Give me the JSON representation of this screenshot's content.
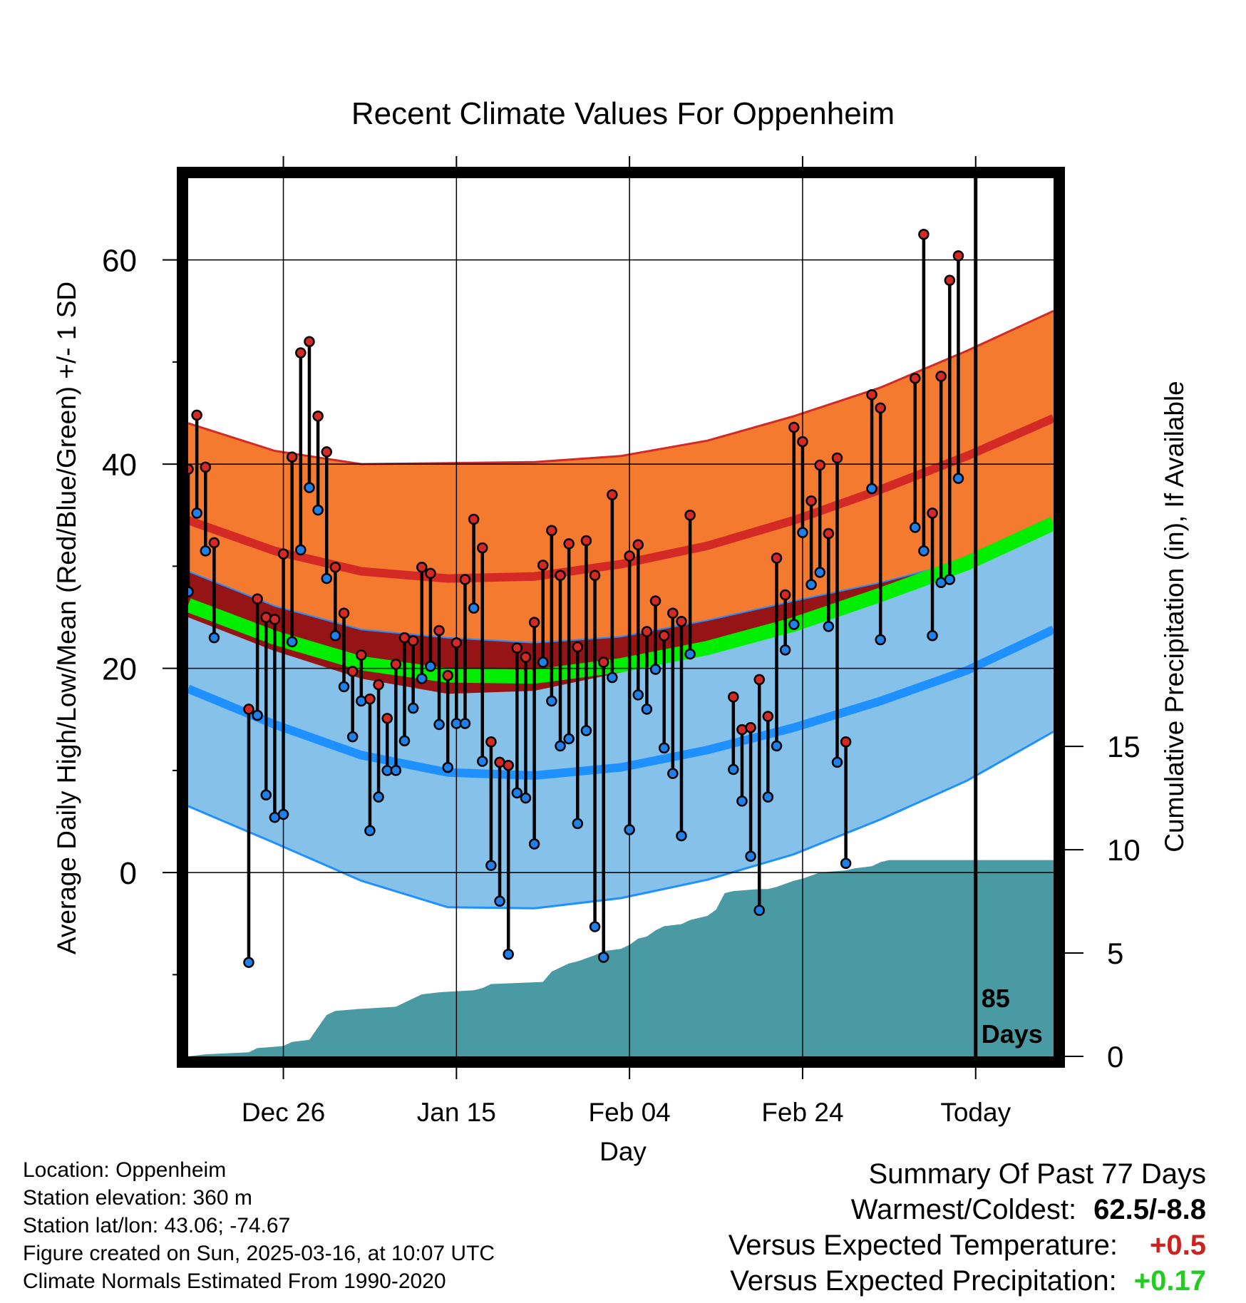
{
  "chart_data": {
    "type": "climate-range",
    "title": "Recent Climate Values For Oppenheim",
    "xlabel": "Day",
    "ylabel": "Average Daily High/Low/Mean (Red/Blue/Green) +/- 1 SD",
    "y2label": "Cumulative Precipitation (in), If Available",
    "x_ticks": [
      {
        "label": "Dec 26",
        "day": 11
      },
      {
        "label": "Jan 15",
        "day": 31
      },
      {
        "label": "Feb 04",
        "day": 51
      },
      {
        "label": "Feb 24",
        "day": 71
      },
      {
        "label": "Today",
        "day": 91
      }
    ],
    "today_day": 91,
    "x_range": [
      0,
      100
    ],
    "y_ticks": [
      0,
      20,
      40,
      60
    ],
    "ylim": [
      -18,
      68
    ],
    "y2_ticks": [
      0,
      5,
      10,
      15
    ],
    "y2lim": [
      0,
      42.5
    ],
    "days_label": "85\nDays",
    "normals": {
      "days": [
        0,
        10,
        20,
        30,
        40,
        50,
        60,
        70,
        80,
        90,
        100
      ],
      "high_mean": [
        34.5,
        31.5,
        29.5,
        28.8,
        29.0,
        30.2,
        32.0,
        34.5,
        37.5,
        40.8,
        44.5
      ],
      "high_sd": [
        9.5,
        9.8,
        10.5,
        11.3,
        11.2,
        10.6,
        10.3,
        10.2,
        10.0,
        10.3,
        10.5
      ],
      "low_mean": [
        18.0,
        14.5,
        11.5,
        9.8,
        9.5,
        10.3,
        12.0,
        14.2,
        16.8,
        19.8,
        23.8
      ],
      "low_sd": [
        11.5,
        11.6,
        12.3,
        13.2,
        13.0,
        12.8,
        12.7,
        12.4,
        11.6,
        10.8,
        10.0
      ],
      "mean_mean": [
        26.2,
        23.0,
        20.5,
        19.3,
        19.2,
        20.3,
        22.0,
        24.3,
        27.2,
        30.3,
        34.2
      ]
    },
    "observed": [
      {
        "day": 0,
        "high": 39.5,
        "low": 27.5
      },
      {
        "day": 1,
        "high": 44.8,
        "low": 35.2
      },
      {
        "day": 2,
        "high": 39.7,
        "low": 31.5
      },
      {
        "day": 3,
        "high": 32.3,
        "low": 23.0
      },
      {
        "day": 7,
        "high": 16.0,
        "low": -8.8
      },
      {
        "day": 8,
        "high": 26.8,
        "low": 15.4
      },
      {
        "day": 9,
        "high": 25.0,
        "low": 7.6
      },
      {
        "day": 10,
        "high": 24.8,
        "low": 5.4
      },
      {
        "day": 11,
        "high": 31.2,
        "low": 5.7
      },
      {
        "day": 12,
        "high": 40.7,
        "low": 22.6
      },
      {
        "day": 13,
        "high": 50.9,
        "low": 31.6
      },
      {
        "day": 14,
        "high": 52.0,
        "low": 37.7
      },
      {
        "day": 15,
        "high": 44.7,
        "low": 35.5
      },
      {
        "day": 16,
        "high": 41.2,
        "low": 28.8
      },
      {
        "day": 17,
        "high": 29.9,
        "low": 23.2
      },
      {
        "day": 18,
        "high": 25.4,
        "low": 18.2
      },
      {
        "day": 19,
        "high": 19.7,
        "low": 13.3
      },
      {
        "day": 20,
        "high": 21.3,
        "low": 16.8
      },
      {
        "day": 21,
        "high": 17.0,
        "low": 4.1
      },
      {
        "day": 22,
        "high": 18.4,
        "low": 7.4
      },
      {
        "day": 23,
        "high": 15.1,
        "low": 10.0
      },
      {
        "day": 24,
        "high": 20.4,
        "low": 10.0
      },
      {
        "day": 25,
        "high": 23.0,
        "low": 12.9
      },
      {
        "day": 26,
        "high": 22.7,
        "low": 16.1
      },
      {
        "day": 27,
        "high": 29.9,
        "low": 19.0
      },
      {
        "day": 28,
        "high": 29.3,
        "low": 20.2
      },
      {
        "day": 29,
        "high": 23.7,
        "low": 14.5
      },
      {
        "day": 30,
        "high": 19.3,
        "low": 10.3
      },
      {
        "day": 31,
        "high": 22.5,
        "low": 14.6
      },
      {
        "day": 32,
        "high": 28.7,
        "low": 14.6
      },
      {
        "day": 33,
        "high": 34.6,
        "low": 25.9
      },
      {
        "day": 34,
        "high": 31.8,
        "low": 10.9
      },
      {
        "day": 35,
        "high": 12.8,
        "low": 0.7
      },
      {
        "day": 36,
        "high": 10.8,
        "low": -2.8
      },
      {
        "day": 37,
        "high": 10.5,
        "low": -8.0
      },
      {
        "day": 38,
        "high": 22.0,
        "low": 7.8
      },
      {
        "day": 39,
        "high": 21.1,
        "low": 7.3
      },
      {
        "day": 40,
        "high": 24.5,
        "low": 2.8
      },
      {
        "day": 41,
        "high": 30.1,
        "low": 20.6
      },
      {
        "day": 42,
        "high": 33.5,
        "low": 16.8
      },
      {
        "day": 43,
        "high": 29.1,
        "low": 12.4
      },
      {
        "day": 44,
        "high": 32.2,
        "low": 13.1
      },
      {
        "day": 45,
        "high": 22.1,
        "low": 4.8
      },
      {
        "day": 46,
        "high": 32.5,
        "low": 13.9
      },
      {
        "day": 47,
        "high": 29.1,
        "low": -5.3
      },
      {
        "day": 48,
        "high": 20.6,
        "low": -8.3
      },
      {
        "day": 49,
        "high": 37.0,
        "low": 19.1
      },
      {
        "day": 51,
        "high": 31.0,
        "low": 4.2
      },
      {
        "day": 52,
        "high": 32.1,
        "low": 17.4
      },
      {
        "day": 53,
        "high": 23.6,
        "low": 16.0
      },
      {
        "day": 54,
        "high": 26.6,
        "low": 19.9
      },
      {
        "day": 55,
        "high": 23.2,
        "low": 12.2
      },
      {
        "day": 56,
        "high": 25.4,
        "low": 9.7
      },
      {
        "day": 57,
        "high": 24.6,
        "low": 3.6
      },
      {
        "day": 58,
        "high": 35.0,
        "low": 21.4
      },
      {
        "day": 63,
        "high": 17.2,
        "low": 10.1
      },
      {
        "day": 64,
        "high": 14.0,
        "low": 7.0
      },
      {
        "day": 65,
        "high": 14.2,
        "low": 1.6
      },
      {
        "day": 66,
        "high": 18.9,
        "low": -3.7
      },
      {
        "day": 67,
        "high": 15.3,
        "low": 7.4
      },
      {
        "day": 68,
        "high": 30.8,
        "low": 12.4
      },
      {
        "day": 69,
        "high": 27.2,
        "low": 21.8
      },
      {
        "day": 70,
        "high": 43.6,
        "low": 24.3
      },
      {
        "day": 71,
        "high": 42.2,
        "low": 33.3
      },
      {
        "day": 72,
        "high": 36.4,
        "low": 28.2
      },
      {
        "day": 73,
        "high": 39.9,
        "low": 29.4
      },
      {
        "day": 74,
        "high": 33.2,
        "low": 24.1
      },
      {
        "day": 75,
        "high": 40.6,
        "low": 10.8
      },
      {
        "day": 76,
        "high": 12.8,
        "low": 0.9
      },
      {
        "day": 79,
        "high": 46.8,
        "low": 37.6
      },
      {
        "day": 80,
        "high": 45.5,
        "low": 22.8
      },
      {
        "day": 84,
        "high": 48.4,
        "low": 33.8
      },
      {
        "day": 85,
        "high": 62.5,
        "low": 31.5
      },
      {
        "day": 86,
        "high": 35.2,
        "low": 23.2
      },
      {
        "day": 87,
        "high": 48.6,
        "low": 28.4
      },
      {
        "day": 88,
        "high": 58.0,
        "low": 28.7
      },
      {
        "day": 89,
        "high": 60.4,
        "low": 38.6
      }
    ],
    "precip_cumulative": {
      "days": [
        0,
        2,
        7,
        8,
        11,
        12,
        14,
        16,
        17,
        20,
        24,
        26,
        27,
        29,
        33,
        34,
        35,
        41,
        42,
        44,
        45,
        47,
        48,
        50,
        51,
        52,
        53,
        54,
        55,
        57,
        58,
        60,
        61,
        62,
        63,
        66,
        67,
        68,
        70,
        71,
        73,
        76,
        77,
        79,
        80,
        81,
        84,
        91,
        100
      ],
      "values": [
        0,
        0.1,
        0.2,
        0.4,
        0.5,
        0.7,
        0.8,
        2.0,
        2.2,
        2.3,
        2.4,
        2.8,
        3.0,
        3.1,
        3.2,
        3.3,
        3.5,
        3.6,
        4.1,
        4.5,
        4.6,
        4.9,
        5.1,
        5.2,
        5.4,
        5.7,
        5.8,
        6.1,
        6.3,
        6.4,
        6.6,
        6.8,
        7.1,
        7.9,
        8.0,
        8.1,
        8.1,
        8.2,
        8.5,
        8.6,
        8.9,
        9.0,
        9.1,
        9.2,
        9.4,
        9.5,
        9.5,
        9.5,
        9.5
      ]
    }
  },
  "footer": {
    "location": "Location: Oppenheim",
    "elevation": "Station elevation: 360 m",
    "latlon": "Station lat/lon: 43.06; -74.67",
    "created": "Figure created on Sun, 2025-03-16, at 10:07 UTC",
    "normals": "Climate Normals Estimated From 1990-2020"
  },
  "summary": {
    "title": "Summary Of Past 77 Days",
    "warm_cold_label": "Warmest/Coldest:",
    "warm_cold_value": "62.5/-8.8",
    "temp_label": "Versus Expected Temperature:",
    "temp_value": "+0.5",
    "precip_label": "Versus Expected Precipitation:",
    "precip_value": "+0.17"
  },
  "colors": {
    "high_band": "#f47a30",
    "high_line": "#d42a26",
    "overlap_band": "#961416",
    "low_band": "#85c1e8",
    "low_line": "#1e90ff",
    "mean_line": "#00ee00",
    "precip": "#4a9aa4",
    "high_dot": "#d42a26",
    "low_dot": "#1e80e8",
    "temp_value": "#cc2222",
    "precip_value": "#22cc22"
  }
}
